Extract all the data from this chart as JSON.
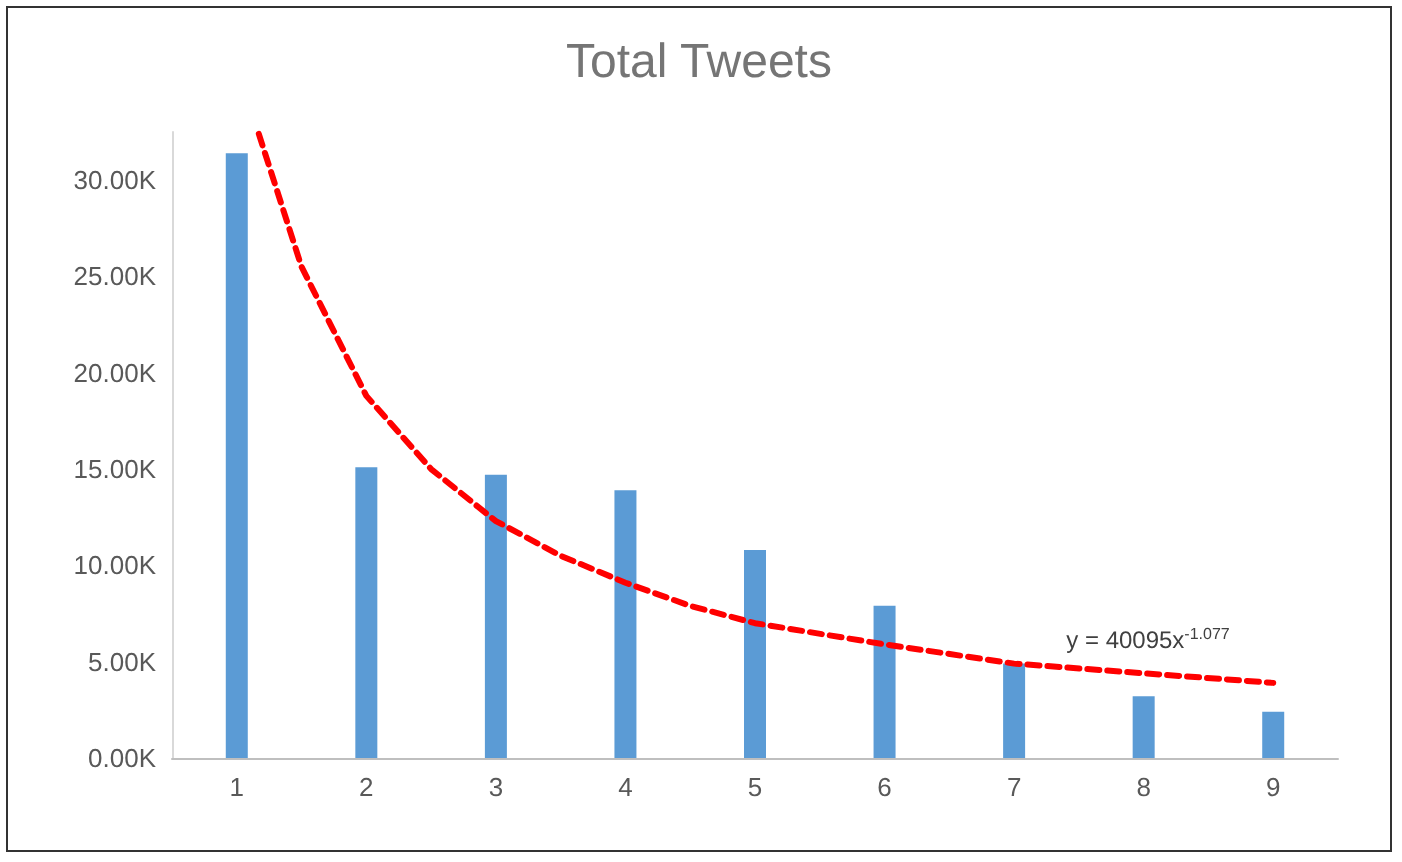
{
  "chart_data": {
    "type": "bar",
    "title": "Total Tweets",
    "x": [
      1,
      2,
      3,
      4,
      5,
      6,
      7,
      8,
      9
    ],
    "xlim": [
      0.5,
      9.5
    ],
    "xticks": [
      1,
      2,
      3,
      4,
      5,
      6,
      7,
      8,
      9
    ],
    "ylim": [
      0,
      32500
    ],
    "yticks": [
      {
        "value": 0,
        "label": "0.00K"
      },
      {
        "value": 5000,
        "label": "5.00K"
      },
      {
        "value": 10000,
        "label": "10.00K"
      },
      {
        "value": 15000,
        "label": "15.00K"
      },
      {
        "value": 20000,
        "label": "20.00K"
      },
      {
        "value": 25000,
        "label": "25.00K"
      },
      {
        "value": 30000,
        "label": "30.00K"
      }
    ],
    "series": [
      {
        "color": "#5b9bd5",
        "values": [
          31400,
          15100,
          14700,
          13900,
          10800,
          7900,
          4900,
          3200,
          2400
        ]
      },
      {
        "type": "line",
        "color": "#ff0000",
        "line_style": "dashed",
        "marker": "none",
        "x": [
          1.17,
          1.5,
          2,
          2.5,
          3,
          3.5,
          4,
          4.5,
          5,
          6,
          7,
          8,
          9
        ],
        "values": [
          32400,
          25500,
          18800,
          15000,
          12300,
          10500,
          9100,
          7900,
          7000,
          5900,
          4900,
          4400,
          3900
        ]
      }
    ],
    "annotations": [
      "y = 40095x$^{-1.077}$"
    ]
  }
}
